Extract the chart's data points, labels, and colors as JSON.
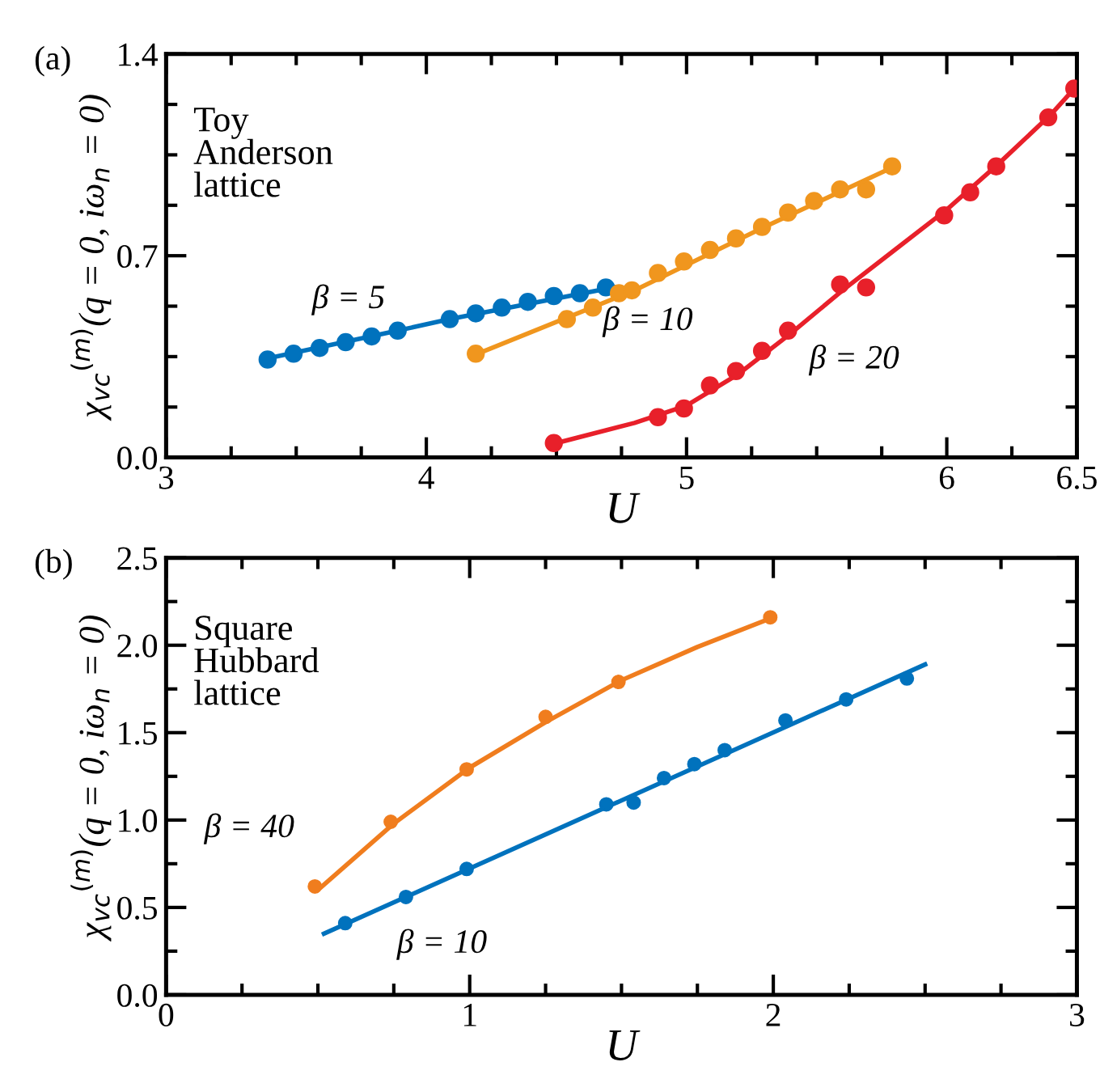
{
  "chart_data": [
    {
      "type": "scatter",
      "xlabel": "U",
      "ylabel": "χ$_{vc}$$^{(m)}$(q = 0, iω$_{n}$ = 0)",
      "marker": "circle",
      "grid": false,
      "xlim": [
        3,
        6.5
      ],
      "ylim": [
        0,
        1.4
      ],
      "xticks": [
        3,
        {
          "value": 3.25,
          "label": null
        },
        {
          "value": 3.5,
          "label": null
        },
        {
          "value": 3.75,
          "label": null
        },
        4,
        {
          "value": 4.25,
          "label": null
        },
        {
          "value": 4.5,
          "label": null
        },
        {
          "value": 4.75,
          "label": null
        },
        5,
        {
          "value": 5.25,
          "label": null
        },
        {
          "value": 5.5,
          "label": null
        },
        {
          "value": 5.75,
          "label": null
        },
        6,
        {
          "value": 6.25,
          "label": null
        },
        6.5
      ],
      "yticks": [
        {
          "value": 0,
          "label": "0.0"
        },
        {
          "value": 0.175,
          "label": null
        },
        {
          "value": 0.35,
          "label": null
        },
        {
          "value": 0.525,
          "label": null
        },
        {
          "value": 0.7,
          "label": "0.7"
        },
        {
          "value": 0.875,
          "label": null
        },
        {
          "value": 1.05,
          "label": null
        },
        {
          "value": 1.225,
          "label": null
        },
        {
          "value": 1.4,
          "label": "1.4"
        }
      ],
      "annotations": [
        "(a)",
        "Toy\nAnderson\nlattice"
      ],
      "series": [
        {
          "name": "β = 5",
          "color": "#0072bd",
          "x": [
            3.39,
            3.49,
            3.59,
            3.69,
            3.79,
            3.89,
            4.09,
            4.19,
            4.29,
            4.39,
            4.49,
            4.59,
            4.69
          ],
          "values": [
            0.34,
            0.36,
            0.38,
            0.4,
            0.42,
            0.44,
            0.48,
            0.5,
            0.52,
            0.54,
            0.56,
            0.57,
            0.59
          ]
        },
        {
          "name": "β = 10",
          "color": "#f0961e",
          "x": [
            4.19,
            4.54,
            4.64,
            4.74,
            4.79,
            4.89,
            4.99,
            5.09,
            5.19,
            5.29,
            5.39,
            5.49,
            5.59,
            5.69,
            5.79
          ],
          "values": [
            0.36,
            0.48,
            0.52,
            0.57,
            0.58,
            0.64,
            0.68,
            0.72,
            0.76,
            0.8,
            0.85,
            0.89,
            0.93,
            0.93,
            1.01
          ]
        },
        {
          "name": "β = 20",
          "color": "#e8202a",
          "x": [
            4.49,
            4.89,
            4.99,
            5.09,
            5.19,
            5.29,
            5.39,
            5.59,
            5.69,
            5.99,
            6.09,
            6.19,
            6.39,
            6.49
          ],
          "values": [
            0.05,
            0.14,
            0.17,
            0.25,
            0.3,
            0.37,
            0.44,
            0.6,
            0.59,
            0.84,
            0.92,
            1.01,
            1.18,
            1.28
          ]
        },
        {
          "type": "line",
          "marker": "none",
          "color": "#0072bd",
          "x": [
            3.37,
            3.89,
            4.09,
            4.72
          ],
          "values": [
            0.34,
            0.44,
            0.48,
            0.59
          ]
        },
        {
          "type": "line",
          "marker": "none",
          "color": "#f0961e",
          "x": [
            4.17,
            4.8,
            5.3,
            5.8
          ],
          "values": [
            0.35,
            0.58,
            0.8,
            1.01
          ]
        },
        {
          "type": "line",
          "marker": "none",
          "color": "#e8202a",
          "x": [
            4.5,
            4.8,
            5.0,
            5.2,
            5.4,
            5.6,
            5.8,
            6.0,
            6.2,
            6.4,
            6.5
          ],
          "values": [
            0.05,
            0.12,
            0.18,
            0.29,
            0.43,
            0.58,
            0.72,
            0.86,
            1.02,
            1.19,
            1.29
          ]
        }
      ]
    },
    {
      "type": "scatter",
      "xlabel": "U",
      "ylabel": "χ$_{vc}$$^{(m)}$(q = 0, iω$_{n}$ = 0)",
      "marker": "circle",
      "grid": false,
      "xlim": [
        0,
        3
      ],
      "ylim": [
        0,
        2.5
      ],
      "xticks": [
        0,
        {
          "value": 0.25,
          "label": null
        },
        {
          "value": 0.5,
          "label": null
        },
        {
          "value": 0.75,
          "label": null
        },
        1,
        {
          "value": 1.25,
          "label": null
        },
        {
          "value": 1.5,
          "label": null
        },
        {
          "value": 1.75,
          "label": null
        },
        2,
        {
          "value": 2.25,
          "label": null
        },
        {
          "value": 2.5,
          "label": null
        },
        {
          "value": 2.75,
          "label": null
        },
        3
      ],
      "yticks": [
        {
          "value": 0,
          "label": "0.0"
        },
        {
          "value": 0.25,
          "label": null
        },
        {
          "value": 0.5,
          "label": "0.5"
        },
        {
          "value": 0.75,
          "label": null
        },
        {
          "value": 1.0,
          "label": "1.0"
        },
        {
          "value": 1.25,
          "label": null
        },
        {
          "value": 1.5,
          "label": "1.5"
        },
        {
          "value": 1.75,
          "label": null
        },
        {
          "value": 2.0,
          "label": "2.0"
        },
        {
          "value": 2.25,
          "label": null
        },
        {
          "value": 2.5,
          "label": "2.5"
        }
      ],
      "annotations": [
        "(b)",
        "Square\nHubbard\nlattice"
      ],
      "series": [
        {
          "name": "β = 40",
          "color": "#f07d1e",
          "x": [
            0.49,
            0.74,
            0.99,
            1.25,
            1.49,
            1.99
          ],
          "values": [
            0.62,
            0.99,
            1.29,
            1.59,
            1.79,
            2.16
          ]
        },
        {
          "name": "β = 10",
          "color": "#0072bd",
          "x": [
            0.59,
            0.79,
            0.99,
            1.45,
            1.54,
            1.64,
            1.74,
            1.84,
            2.04,
            2.24,
            2.44
          ],
          "values": [
            0.41,
            0.56,
            0.72,
            1.09,
            1.1,
            1.24,
            1.32,
            1.4,
            1.57,
            1.69,
            1.81
          ]
        },
        {
          "type": "line",
          "marker": "none",
          "color": "#f07d1e",
          "x": [
            0.5,
            0.75,
            1.0,
            1.25,
            1.5,
            1.75,
            2.0
          ],
          "values": [
            0.6,
            0.98,
            1.3,
            1.56,
            1.8,
            1.99,
            2.16
          ]
        },
        {
          "type": "line",
          "marker": "none",
          "color": "#0072bd",
          "x": [
            0.52,
            2.5
          ],
          "values": [
            0.35,
            1.89
          ]
        }
      ]
    }
  ]
}
